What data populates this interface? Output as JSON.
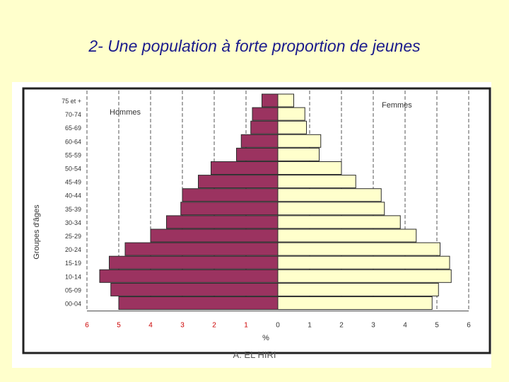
{
  "slide": {
    "title": "2- Une population à forte proportion de jeunes",
    "footer": "A. EL HIRI"
  },
  "chart_data": {
    "type": "bar",
    "orientation": "horizontal-pyramid",
    "ylabel": "Groupes d'âges",
    "xlabel": "%",
    "categories": [
      "75 et +",
      "70-74",
      "65-69",
      "60-64",
      "55-59",
      "50-54",
      "45-49",
      "40-44",
      "35-39",
      "30-34",
      "25-29",
      "20-24",
      "15-19",
      "10-14",
      "05-09",
      "00-04"
    ],
    "series": [
      {
        "name": "Hommes",
        "color": "#9b3360",
        "values": [
          0.5,
          0.8,
          0.85,
          1.15,
          1.3,
          2.1,
          2.5,
          3.0,
          3.05,
          3.5,
          4.0,
          4.8,
          5.3,
          5.6,
          5.25,
          5.0
        ]
      },
      {
        "name": "Femmes",
        "color": "#ffffcc",
        "values": [
          0.5,
          0.85,
          0.9,
          1.35,
          1.3,
          2.0,
          2.45,
          3.25,
          3.35,
          3.85,
          4.35,
          5.1,
          5.4,
          5.45,
          5.05,
          4.85
        ]
      }
    ],
    "xlim": [
      -6,
      6
    ],
    "x_ticks": [
      "6",
      "5",
      "4",
      "3",
      "2",
      "1",
      "0",
      "1",
      "2",
      "3",
      "4",
      "5",
      "6"
    ],
    "grid": "vertical dashed",
    "colors": {
      "frame": "#222222",
      "tick_labels_left": "#cc0000",
      "tick_labels_right": "#333333"
    }
  }
}
